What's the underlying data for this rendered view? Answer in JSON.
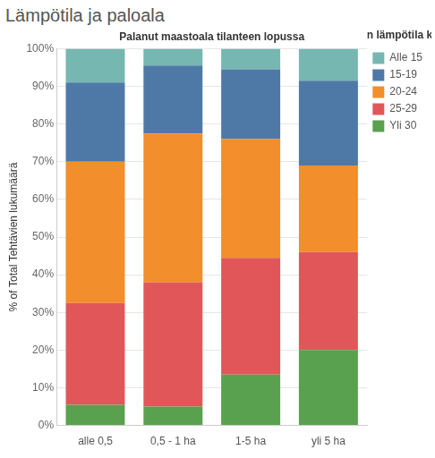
{
  "chart_data": {
    "type": "bar",
    "title": "Lämpötila ja paloala",
    "x_label": "Palanut maastoala tilanteen lopussa",
    "y_label": "% of Total Tehtävien lukumäärä",
    "legend_title": "Ylin ilman lämpötila kunnassa",
    "categories": [
      "alle 0,5",
      "0,5 - 1 ha",
      "1-5 ha",
      "yli 5 ha"
    ],
    "series": [
      {
        "name": "Alle 15",
        "color": "#76b7b2",
        "values": [
          9,
          4.5,
          5.5,
          8.5
        ]
      },
      {
        "name": "15-19",
        "color": "#4e79a7",
        "values": [
          21,
          18,
          18.5,
          22.5
        ]
      },
      {
        "name": "20-24",
        "color": "#f28e2b",
        "values": [
          37.5,
          39.5,
          31.5,
          23
        ]
      },
      {
        "name": "25-29",
        "color": "#e15759",
        "values": [
          27,
          33,
          31,
          26
        ]
      },
      {
        "name": "Yli 30",
        "color": "#59a14f",
        "values": [
          5.5,
          5,
          13.5,
          20
        ]
      }
    ],
    "stacked": true,
    "ylim": [
      0,
      100
    ],
    "yticks": [
      {
        "value": 0,
        "label": "0%"
      },
      {
        "value": 10,
        "label": "10%"
      },
      {
        "value": 20,
        "label": "20%"
      },
      {
        "value": 30,
        "label": "30%"
      },
      {
        "value": 40,
        "label": "40%"
      },
      {
        "value": 50,
        "label": "50%"
      },
      {
        "value": 60,
        "label": "60%"
      },
      {
        "value": 70,
        "label": "70%"
      },
      {
        "value": 80,
        "label": "80%"
      },
      {
        "value": 90,
        "label": "90%"
      },
      {
        "value": 100,
        "label": "100%"
      }
    ],
    "grid": true,
    "legend": "right",
    "data_labels": false
  }
}
